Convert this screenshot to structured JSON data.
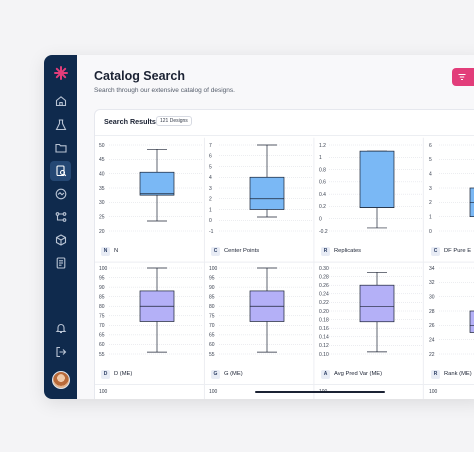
{
  "header": {
    "title": "Catalog Search",
    "subtitle": "Search through our extensive catalog of designs."
  },
  "results": {
    "title": "Search Results",
    "count_badge": "121 Designs"
  },
  "sidebar": {
    "items": [
      {
        "icon": "home-icon"
      },
      {
        "icon": "flask-icon"
      },
      {
        "icon": "folder-icon"
      },
      {
        "icon": "catalog-search-icon",
        "active": true
      },
      {
        "icon": "analytics-icon"
      },
      {
        "icon": "workflow-icon"
      },
      {
        "icon": "cube-icon"
      },
      {
        "icon": "notebook-icon"
      }
    ],
    "bottom": [
      {
        "icon": "notification-icon"
      },
      {
        "icon": "logout-icon"
      },
      {
        "icon": "avatar"
      }
    ]
  },
  "colors": {
    "sidebar": "#0f2a4d",
    "accent": "#e23d7a",
    "box_blue": "#7ab8f5",
    "box_purple": "#b4b0f7"
  },
  "chart_data": [
    {
      "type": "box",
      "badge": "N",
      "label": "N",
      "ticks": [
        "50",
        "45",
        "40",
        "35",
        "30",
        "25",
        "20"
      ],
      "ylim": [
        20,
        50
      ],
      "whisker_low": 23.5,
      "q1": 32.5,
      "median": 33,
      "q3": 40.5,
      "whisker_high": 48.5,
      "color": "#7ab8f5"
    },
    {
      "type": "box",
      "badge": "C",
      "label": "Center Points",
      "ticks": [
        "7",
        "6",
        "5",
        "4",
        "3",
        "2",
        "1",
        "0",
        "-1"
      ],
      "ylim": [
        -1,
        7
      ],
      "whisker_low": 0.3,
      "q1": 1,
      "median": 2,
      "q3": 4,
      "whisker_high": 7,
      "color": "#7ab8f5"
    },
    {
      "type": "box",
      "badge": "R",
      "label": "Replicates",
      "ticks": [
        "1.2",
        "1",
        "0.8",
        "0.6",
        "0.4",
        "0.2",
        "0",
        "-0.2"
      ],
      "ylim": [
        -0.2,
        1.2
      ],
      "whisker_low": -0.15,
      "q1": 0.18,
      "median": 0.18,
      "q3": 1.1,
      "whisker_high": 1.1,
      "color": "#7ab8f5"
    },
    {
      "type": "box",
      "badge": "C",
      "label": "DF Pure E",
      "ticks": [
        "6",
        "5",
        "4",
        "3",
        "2",
        "1",
        "0"
      ],
      "ylim": [
        0,
        6
      ],
      "whisker_low": 0,
      "q1": 1,
      "median": 2,
      "q3": 3,
      "whisker_high": 6,
      "color": "#7ab8f5"
    },
    {
      "type": "box",
      "badge": "D",
      "label": "D (ME)",
      "ticks": [
        "100",
        "95",
        "90",
        "85",
        "80",
        "75",
        "70",
        "65",
        "60",
        "55"
      ],
      "ylim": [
        55,
        100
      ],
      "whisker_low": 56,
      "q1": 72,
      "median": 80,
      "q3": 88,
      "whisker_high": 100,
      "color": "#b4b0f7"
    },
    {
      "type": "box",
      "badge": "G",
      "label": "G (ME)",
      "ticks": [
        "100",
        "95",
        "90",
        "85",
        "80",
        "75",
        "70",
        "65",
        "60",
        "55"
      ],
      "ylim": [
        55,
        100
      ],
      "whisker_low": 56,
      "q1": 72,
      "median": 80,
      "q3": 88,
      "whisker_high": 100,
      "color": "#b4b0f7"
    },
    {
      "type": "box",
      "badge": "A",
      "label": "Avg Pred Var (ME)",
      "ticks": [
        "0.30",
        "0.28",
        "0.26",
        "0.24",
        "0.22",
        "0.20",
        "0.18",
        "0.16",
        "0.14",
        "0.12",
        "0.10"
      ],
      "ylim": [
        0.1,
        0.3
      ],
      "whisker_low": 0.105,
      "q1": 0.175,
      "median": 0.21,
      "q3": 0.26,
      "whisker_high": 0.29,
      "color": "#b4b0f7"
    },
    {
      "type": "box",
      "badge": "R",
      "label": "Rank (ME)",
      "ticks": [
        "34",
        "32",
        "30",
        "28",
        "26",
        "24",
        "22"
      ],
      "ylim": [
        22,
        34
      ],
      "whisker_low": 22,
      "q1": 25,
      "median": 26,
      "q3": 28,
      "whisker_high": 34,
      "color": "#b4b0f7"
    }
  ],
  "next_row_ticks": [
    "100",
    "100",
    "100",
    "100"
  ]
}
